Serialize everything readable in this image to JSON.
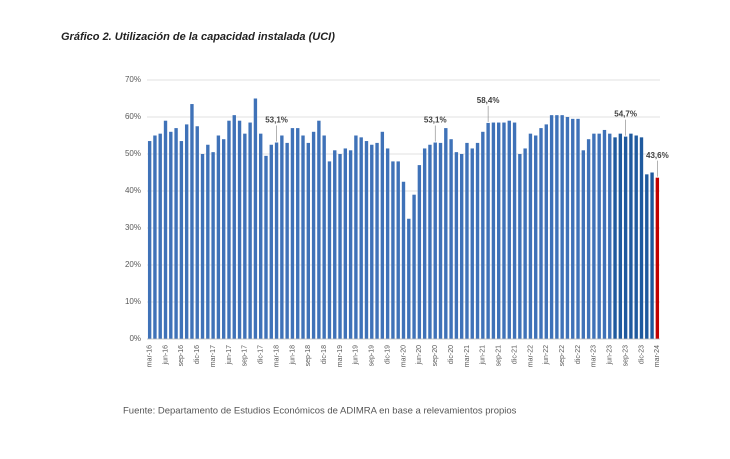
{
  "chart_data": {
    "type": "bar",
    "title": "Gráfico 2. Utilización de la capacidad instalada (UCI)",
    "source": "Fuente: Departamento de Estudios Económicos de ADIMRA en base a relevamientos propios",
    "categories": [
      "mar-16",
      null,
      null,
      "jun-16",
      null,
      null,
      "sep-16",
      null,
      null,
      "dic-16",
      null,
      null,
      "mar-17",
      null,
      null,
      "jun-17",
      null,
      null,
      "sep-17",
      null,
      null,
      "dic-17",
      null,
      null,
      "mar-18",
      null,
      null,
      "jun-18",
      null,
      null,
      "sep-18",
      null,
      null,
      "dic-18",
      null,
      null,
      "mar-19",
      null,
      null,
      "jun-19",
      null,
      null,
      "sep-19",
      null,
      null,
      "dic-19",
      null,
      null,
      "mar-20",
      null,
      null,
      "jun-20",
      null,
      null,
      "sep-20",
      null,
      null,
      "dic-20",
      null,
      null,
      "mar-21",
      null,
      null,
      "jun-21",
      null,
      null,
      "sep-21",
      null,
      null,
      "dic-21",
      null,
      null,
      "mar-22",
      null,
      null,
      "jun-22",
      null,
      null,
      "sep-22",
      null,
      null,
      "dic-22",
      null,
      null,
      "mar-23",
      null,
      null,
      "jun-23",
      null,
      null,
      "sep-23",
      null,
      null,
      "dic-23",
      null,
      null,
      "mar-24"
    ],
    "values": [
      53.5,
      55,
      55.5,
      59,
      56,
      57,
      53.5,
      58,
      63.5,
      57.5,
      50,
      52.5,
      50.5,
      55,
      54,
      59,
      60.5,
      59,
      55.5,
      58.5,
      65,
      55.5,
      49.5,
      52.5,
      53.1,
      55,
      53,
      57,
      57,
      55,
      53,
      56,
      59,
      55,
      48,
      51,
      50,
      51.5,
      51,
      55,
      54.5,
      53.5,
      52.5,
      53,
      56,
      51.5,
      48,
      48,
      42.5,
      32.5,
      39,
      47,
      51.5,
      52.5,
      53.1,
      53,
      57,
      54,
      50.5,
      50,
      53,
      51.5,
      53,
      56,
      58.4,
      58.5,
      58.5,
      58.5,
      59,
      58.5,
      50,
      51.5,
      55.5,
      55,
      57,
      58,
      60.5,
      60.5,
      60.5,
      60,
      59.5,
      59.5,
      51,
      54,
      55.5,
      55.5,
      56.5,
      55.5,
      54.5,
      55.5,
      54.7,
      55.5,
      55,
      54.5,
      44.5,
      45,
      43.6
    ],
    "value_labels": [
      null,
      null,
      null,
      null,
      null,
      null,
      null,
      null,
      null,
      null,
      null,
      null,
      null,
      null,
      null,
      null,
      null,
      null,
      null,
      null,
      null,
      null,
      null,
      null,
      "53,1%",
      null,
      null,
      null,
      null,
      null,
      null,
      null,
      null,
      null,
      null,
      null,
      null,
      null,
      null,
      null,
      null,
      null,
      null,
      null,
      null,
      null,
      null,
      null,
      null,
      null,
      null,
      null,
      null,
      null,
      "53,1%",
      null,
      null,
      null,
      null,
      null,
      null,
      null,
      null,
      null,
      "58,4%",
      null,
      null,
      null,
      null,
      null,
      null,
      null,
      null,
      null,
      null,
      null,
      null,
      null,
      null,
      null,
      null,
      null,
      null,
      null,
      null,
      null,
      null,
      null,
      null,
      null,
      "54,7%",
      null,
      null,
      null,
      null,
      null,
      "43,6%"
    ],
    "bar_colors": [
      "#3f72b8",
      "#3f72b8",
      "#3f72b8",
      "#3f72b8",
      "#3f72b8",
      "#3f72b8",
      "#3f72b8",
      "#3f72b8",
      "#3f72b8",
      "#3f72b8",
      "#3f72b8",
      "#3f72b8",
      "#3f72b8",
      "#3f72b8",
      "#3f72b8",
      "#3f72b8",
      "#3f72b8",
      "#3f72b8",
      "#3f72b8",
      "#3f72b8",
      "#3f72b8",
      "#3f72b8",
      "#3f72b8",
      "#3f72b8",
      "#3f72b8",
      "#3f72b8",
      "#3f72b8",
      "#3f72b8",
      "#3f72b8",
      "#3f72b8",
      "#3f72b8",
      "#3f72b8",
      "#3f72b8",
      "#3f72b8",
      "#3f72b8",
      "#3f72b8",
      "#3f72b8",
      "#3f72b8",
      "#3f72b8",
      "#3f72b8",
      "#3f72b8",
      "#3f72b8",
      "#3f72b8",
      "#3f72b8",
      "#3f72b8",
      "#3f72b8",
      "#3f72b8",
      "#3f72b8",
      "#3f72b8",
      "#3f72b8",
      "#3f72b8",
      "#3f72b8",
      "#3f72b8",
      "#3f72b8",
      "#3f72b8",
      "#3f72b8",
      "#3f72b8",
      "#3f72b8",
      "#3f72b8",
      "#3f72b8",
      "#3f72b8",
      "#3f72b8",
      "#3f72b8",
      "#3f72b8",
      "#3f72b8",
      "#3f72b8",
      "#3f72b8",
      "#3f72b8",
      "#3f72b8",
      "#3f72b8",
      "#3f72b8",
      "#3f72b8",
      "#3f72b8",
      "#3f72b8",
      "#3f72b8",
      "#3f72b8",
      "#3f72b8",
      "#3f72b8",
      "#3f72b8",
      "#3f72b8",
      "#3f72b8",
      "#3f72b8",
      "#3f72b8",
      "#3f72b8",
      "#3f72b8",
      "#3f72b8",
      "#3f72b8",
      "#3f72b8",
      "#1f5a9e",
      "#1f5a9e",
      "#1f5a9e",
      "#1f5a9e",
      "#1f5a9e",
      "#1f5a9e",
      "#1f5a9e",
      "#1f5a9e",
      "#c00000"
    ],
    "ylim": [
      0,
      70
    ],
    "yticks": [
      {
        "value": 0,
        "label": "0%"
      },
      {
        "value": 10,
        "label": "10%"
      },
      {
        "value": 20,
        "label": "20%"
      },
      {
        "value": 30,
        "label": "30%"
      },
      {
        "value": 40,
        "label": "40%"
      },
      {
        "value": 50,
        "label": "50%"
      },
      {
        "value": 60,
        "label": "60%"
      },
      {
        "value": 70,
        "label": "70%"
      }
    ],
    "grid": true
  }
}
